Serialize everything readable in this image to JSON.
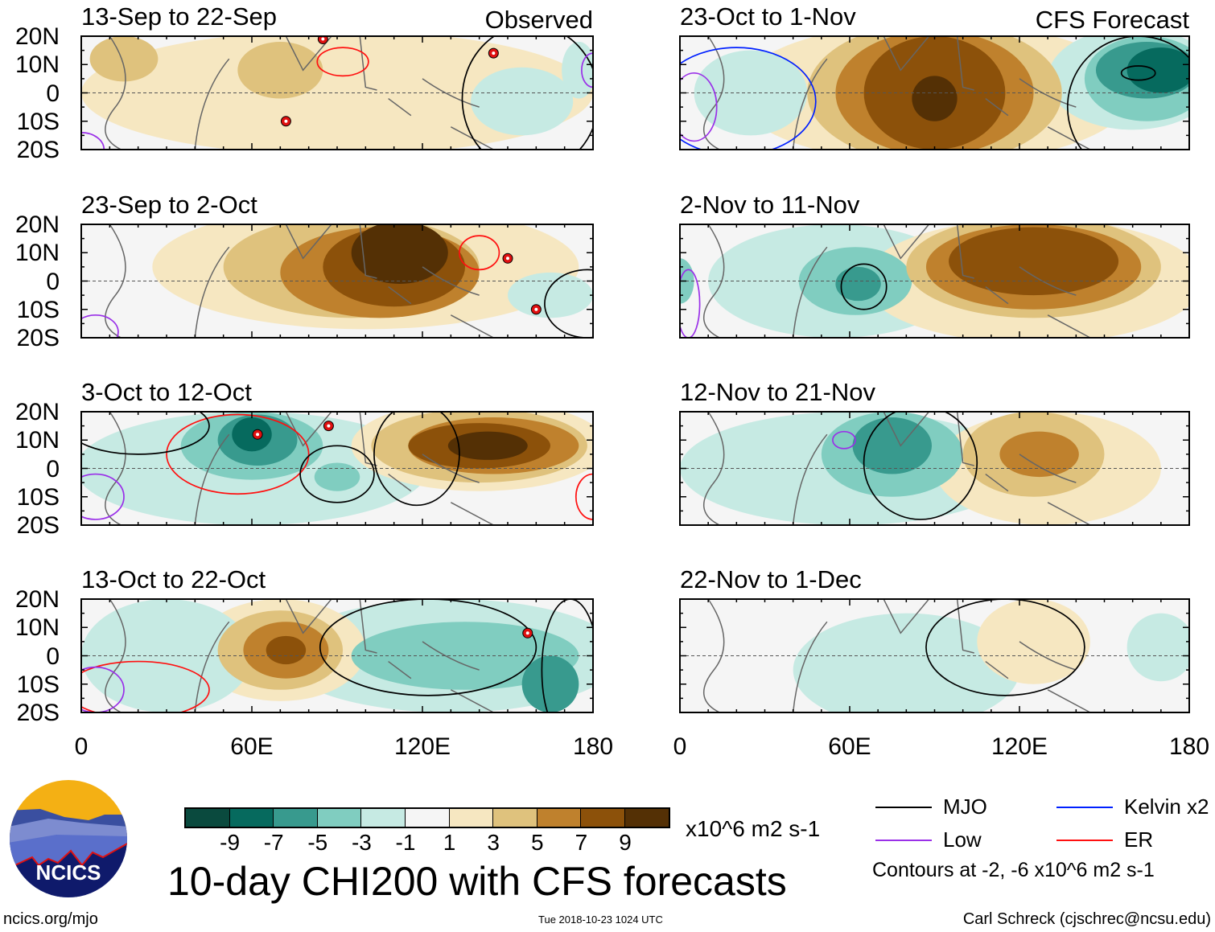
{
  "chart_data": [
    {
      "type": "heatmap",
      "title": "13-Sep to 22-Sep",
      "tag": "Observed",
      "col": 0,
      "row": 0,
      "blobs": [
        [
          90,
          0,
          90,
          22,
          2
        ],
        [
          15,
          12,
          12,
          8,
          4
        ],
        [
          70,
          8,
          15,
          10,
          4
        ],
        [
          155,
          -3,
          18,
          12,
          -2
        ],
        [
          175,
          8,
          6,
          10,
          -2
        ]
      ],
      "contours": [
        [
          "er",
          92,
          11,
          9,
          5
        ],
        [
          "mjo",
          158,
          -2,
          24,
          26
        ],
        [
          "low",
          0,
          -20,
          8,
          6
        ],
        [
          "low",
          180,
          8,
          4,
          6
        ]
      ],
      "storms": [
        [
          85,
          19
        ],
        [
          72,
          -10
        ],
        [
          145,
          14
        ]
      ]
    },
    {
      "type": "heatmap",
      "title": "23-Sep to 2-Oct",
      "tag": "",
      "col": 0,
      "row": 1,
      "blobs": [
        [
          100,
          5,
          75,
          22,
          2
        ],
        [
          95,
          5,
          45,
          18,
          4
        ],
        [
          105,
          3,
          35,
          16,
          6
        ],
        [
          110,
          5,
          25,
          14,
          8
        ],
        [
          112,
          10,
          17,
          11,
          10
        ],
        [
          165,
          -5,
          15,
          8,
          -2
        ]
      ],
      "contours": [
        [
          "er",
          140,
          10,
          7,
          6
        ],
        [
          "mjo",
          178,
          -8,
          15,
          12
        ],
        [
          "low",
          5,
          -18,
          8,
          6
        ]
      ],
      "storms": [
        [
          150,
          8
        ],
        [
          160,
          -10
        ]
      ]
    },
    {
      "type": "heatmap",
      "title": "3-Oct to 12-Oct",
      "tag": "",
      "col": 0,
      "row": 2,
      "blobs": [
        [
          60,
          0,
          62,
          20,
          -2
        ],
        [
          60,
          8,
          25,
          12,
          -4
        ],
        [
          62,
          10,
          14,
          9,
          -6
        ],
        [
          60,
          12,
          7,
          6,
          -8
        ],
        [
          90,
          -3,
          8,
          5,
          -4
        ],
        [
          140,
          8,
          45,
          16,
          2
        ],
        [
          140,
          8,
          38,
          13,
          4
        ],
        [
          145,
          8,
          30,
          10,
          6
        ],
        [
          140,
          8,
          25,
          8,
          8
        ],
        [
          143,
          8,
          14,
          5,
          10
        ]
      ],
      "contours": [
        [
          "er",
          55,
          5,
          25,
          14
        ],
        [
          "mjo",
          90,
          -2,
          13,
          10
        ],
        [
          "mjo",
          20,
          15,
          25,
          10
        ],
        [
          "mjo",
          118,
          5,
          15,
          18
        ],
        [
          "low",
          5,
          -10,
          10,
          8
        ],
        [
          "er",
          180,
          -10,
          6,
          8
        ]
      ],
      "storms": [
        [
          62,
          12
        ],
        [
          87,
          15
        ]
      ]
    },
    {
      "type": "heatmap",
      "title": "13-Oct to 22-Oct",
      "tag": "",
      "col": 0,
      "row": 3,
      "blobs": [
        [
          130,
          0,
          60,
          20,
          -2
        ],
        [
          135,
          0,
          40,
          12,
          -4
        ],
        [
          165,
          -10,
          10,
          10,
          -6
        ],
        [
          70,
          2,
          30,
          18,
          2
        ],
        [
          70,
          2,
          22,
          14,
          4
        ],
        [
          72,
          2,
          15,
          10,
          6
        ],
        [
          72,
          2,
          7,
          5,
          8
        ],
        [
          30,
          0,
          30,
          20,
          -2
        ]
      ],
      "contours": [
        [
          "mjo",
          122,
          3,
          38,
          17
        ],
        [
          "mjo",
          172,
          -5,
          10,
          25
        ],
        [
          "er",
          20,
          -12,
          25,
          10
        ],
        [
          "low",
          5,
          -12,
          10,
          8
        ]
      ],
      "storms": [
        [
          157,
          8
        ]
      ]
    },
    {
      "type": "heatmap",
      "title": "23-Oct to 1-Nov",
      "tag": "CFS Forecast",
      "col": 1,
      "row": 0,
      "blobs": [
        [
          90,
          0,
          70,
          25,
          2
        ],
        [
          90,
          0,
          45,
          25,
          4
        ],
        [
          90,
          0,
          35,
          22,
          6
        ],
        [
          90,
          0,
          25,
          20,
          8
        ],
        [
          90,
          -2,
          8,
          8,
          10
        ],
        [
          160,
          5,
          30,
          18,
          -2
        ],
        [
          165,
          5,
          22,
          15,
          -4
        ],
        [
          165,
          8,
          18,
          10,
          -6
        ],
        [
          170,
          8,
          12,
          8,
          -8
        ],
        [
          25,
          0,
          20,
          15,
          -2
        ]
      ],
      "contours": [
        [
          "kelvin",
          20,
          -3,
          28,
          19
        ],
        [
          "mjo",
          162,
          -5,
          25,
          25
        ],
        [
          "mjo",
          162,
          7,
          6,
          2.5
        ],
        [
          "low",
          5,
          -5,
          8,
          12
        ]
      ],
      "storms": []
    },
    {
      "type": "heatmap",
      "title": "2-Nov to 11-Nov",
      "tag": "",
      "col": 1,
      "row": 1,
      "blobs": [
        [
          55,
          0,
          45,
          20,
          -2
        ],
        [
          62,
          0,
          20,
          12,
          -4
        ],
        [
          63,
          -1,
          8,
          6,
          -6
        ],
        [
          0,
          0,
          5,
          8,
          -4
        ],
        [
          125,
          0,
          60,
          22,
          2
        ],
        [
          125,
          5,
          45,
          18,
          4
        ],
        [
          125,
          5,
          38,
          15,
          6
        ],
        [
          125,
          7,
          30,
          12,
          8
        ]
      ],
      "contours": [
        [
          "mjo",
          65,
          -2,
          8,
          8
        ],
        [
          "low",
          3,
          -8,
          4,
          12
        ]
      ],
      "storms": []
    },
    {
      "type": "heatmap",
      "title": "12-Nov to 21-Nov",
      "tag": "",
      "col": 1,
      "row": 2,
      "blobs": [
        [
          60,
          0,
          60,
          20,
          -2
        ],
        [
          75,
          5,
          25,
          15,
          -4
        ],
        [
          75,
          8,
          14,
          10,
          -6
        ],
        [
          130,
          0,
          40,
          20,
          2
        ],
        [
          125,
          5,
          25,
          15,
          4
        ],
        [
          127,
          5,
          14,
          8,
          6
        ]
      ],
      "contours": [
        [
          "mjo",
          85,
          2,
          20,
          20
        ],
        [
          "low",
          58,
          10,
          4,
          3
        ]
      ],
      "storms": []
    },
    {
      "type": "heatmap",
      "title": "22-Nov to 1-Dec",
      "tag": "",
      "col": 1,
      "row": 3,
      "blobs": [
        [
          80,
          -5,
          40,
          20,
          -2
        ],
        [
          170,
          3,
          12,
          12,
          -2
        ],
        [
          125,
          5,
          20,
          15,
          2
        ]
      ],
      "contours": [
        [
          "mjo",
          115,
          3,
          28,
          17
        ]
      ],
      "storms": []
    }
  ],
  "axes": {
    "ylabels": [
      "20N",
      "10N",
      "0",
      "10S",
      "20S"
    ],
    "xlabels": [
      "0",
      "60E",
      "120E",
      "180"
    ],
    "xlim": [
      0,
      180
    ],
    "ylim": [
      -20,
      20
    ]
  },
  "colorbar": {
    "levels": [
      -11,
      -9,
      -7,
      -5,
      -3,
      -1,
      1,
      3,
      5,
      7,
      9,
      11
    ],
    "colors": [
      "#0a4a3e",
      "#066a5e",
      "#389a8e",
      "#80cdc0",
      "#c6eae3",
      "#f5f5f5",
      "#f6e7c1",
      "#dfc27d",
      "#bf812d",
      "#8c510a",
      "#543005"
    ],
    "labels": [
      "-9",
      "-7",
      "-5",
      "-3",
      "-1",
      "1",
      "3",
      "5",
      "7",
      "9"
    ],
    "units": "x10^6 m2 s-1"
  },
  "legend": {
    "items": [
      {
        "label": "MJO",
        "color": "#000000"
      },
      {
        "label": "Kelvin x2",
        "color": "#0020ff"
      },
      {
        "label": "Low",
        "color": "#9a30e8"
      },
      {
        "label": "ER",
        "color": "#ff1010"
      }
    ],
    "contours_note": "Contours at -2, -6 x10^6 m2 s-1"
  },
  "title": "10-day CHI200 with CFS forecasts",
  "timestamp": "Tue 2018-10-23 1024 UTC",
  "logo_text": "NCICS",
  "site": "ncics.org/mjo",
  "author": "Carl Schreck (cjschrec@ncsu.edu)"
}
